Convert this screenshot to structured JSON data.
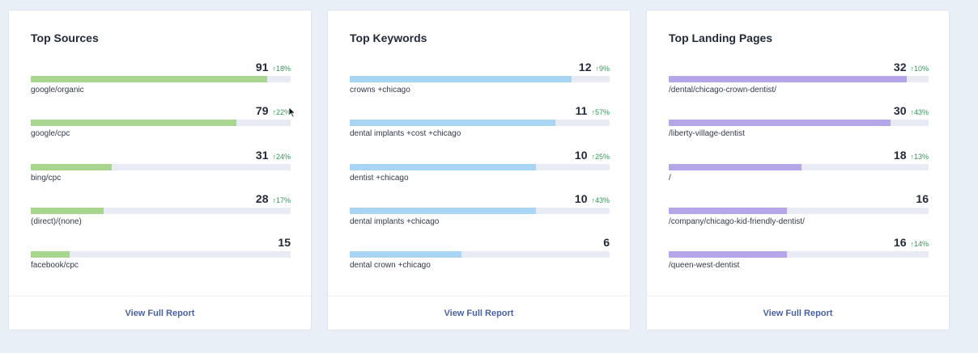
{
  "colors": {
    "sources_bar": "#a8d68e",
    "keywords_bar": "#a9d5f4",
    "landing_bar": "#b5a6ea",
    "change_positive": "#2f9a57"
  },
  "cards": [
    {
      "title": "Top Sources",
      "footer_link": "View Full Report",
      "rows": [
        {
          "value": "91",
          "change": "↑18%",
          "label": "google/organic",
          "fill": 0.91
        },
        {
          "value": "79",
          "change": "↑22%",
          "label": "google/cpc",
          "fill": 0.79
        },
        {
          "value": "31",
          "change": "↑24%",
          "label": "bing/cpc",
          "fill": 0.31
        },
        {
          "value": "28",
          "change": "↑17%",
          "label": "(direct)/(none)",
          "fill": 0.28
        },
        {
          "value": "15",
          "change": "",
          "label": "facebook/cpc",
          "fill": 0.15
        }
      ]
    },
    {
      "title": "Top Keywords",
      "footer_link": "View Full Report",
      "rows": [
        {
          "value": "12",
          "change": "↑9%",
          "label": "crowns +chicago",
          "fill": 0.855
        },
        {
          "value": "11",
          "change": "↑57%",
          "label": "dental implants +cost +chicago",
          "fill": 0.79
        },
        {
          "value": "10",
          "change": "↑25%",
          "label": "dentist +chicago",
          "fill": 0.715
        },
        {
          "value": "10",
          "change": "↑43%",
          "label": "dental implants +chicago",
          "fill": 0.715
        },
        {
          "value": "6",
          "change": "",
          "label": "dental crown +chicago",
          "fill": 0.43
        }
      ]
    },
    {
      "title": "Top Landing Pages",
      "footer_link": "View Full Report",
      "rows": [
        {
          "value": "32",
          "change": "↑10%",
          "label": "/dental/chicago-crown-dentist/",
          "fill": 0.915
        },
        {
          "value": "30",
          "change": "↑43%",
          "label": "/liberty-village-dentist",
          "fill": 0.855
        },
        {
          "value": "18",
          "change": "↑13%",
          "label": "/",
          "fill": 0.51
        },
        {
          "value": "16",
          "change": "",
          "label": "/company/chicago-kid-friendly-dentist/",
          "fill": 0.455
        },
        {
          "value": "16",
          "change": "↑14%",
          "label": "/queen-west-dentist",
          "fill": 0.455
        }
      ]
    }
  ]
}
